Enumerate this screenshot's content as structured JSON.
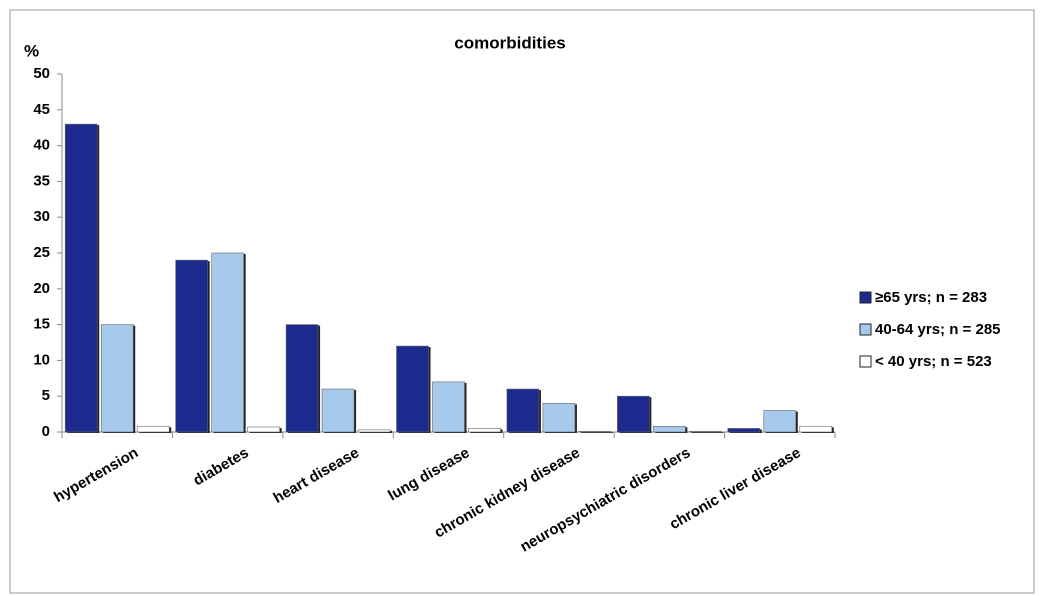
{
  "chart_data": {
    "type": "bar",
    "title": "comorbidities",
    "y_label": "%",
    "categories": [
      "hypertension",
      "diabetes",
      "heart disease",
      "lung disease",
      "chronic kidney disease",
      "neuropsychiatric disorders",
      "chronic liver disease"
    ],
    "series": [
      {
        "name": "≥65 yrs; n = 283",
        "color": "#1c2a8e",
        "values": [
          43,
          24,
          15,
          12,
          6,
          5,
          0.5
        ]
      },
      {
        "name": "40-64 yrs; n = 285",
        "color": "#a7c9ec",
        "values": [
          15,
          25,
          6,
          7,
          4,
          0.8,
          3
        ]
      },
      {
        "name": "< 40 yrs; n = 523",
        "color": "#ffffff",
        "values": [
          0.8,
          0.7,
          0.3,
          0.5,
          0.1,
          0.1,
          0.8
        ]
      }
    ],
    "ylim": [
      0,
      50
    ],
    "yticks": [
      0,
      5,
      10,
      15,
      20,
      25,
      30,
      35,
      40,
      45,
      50
    ],
    "legend": "right"
  }
}
